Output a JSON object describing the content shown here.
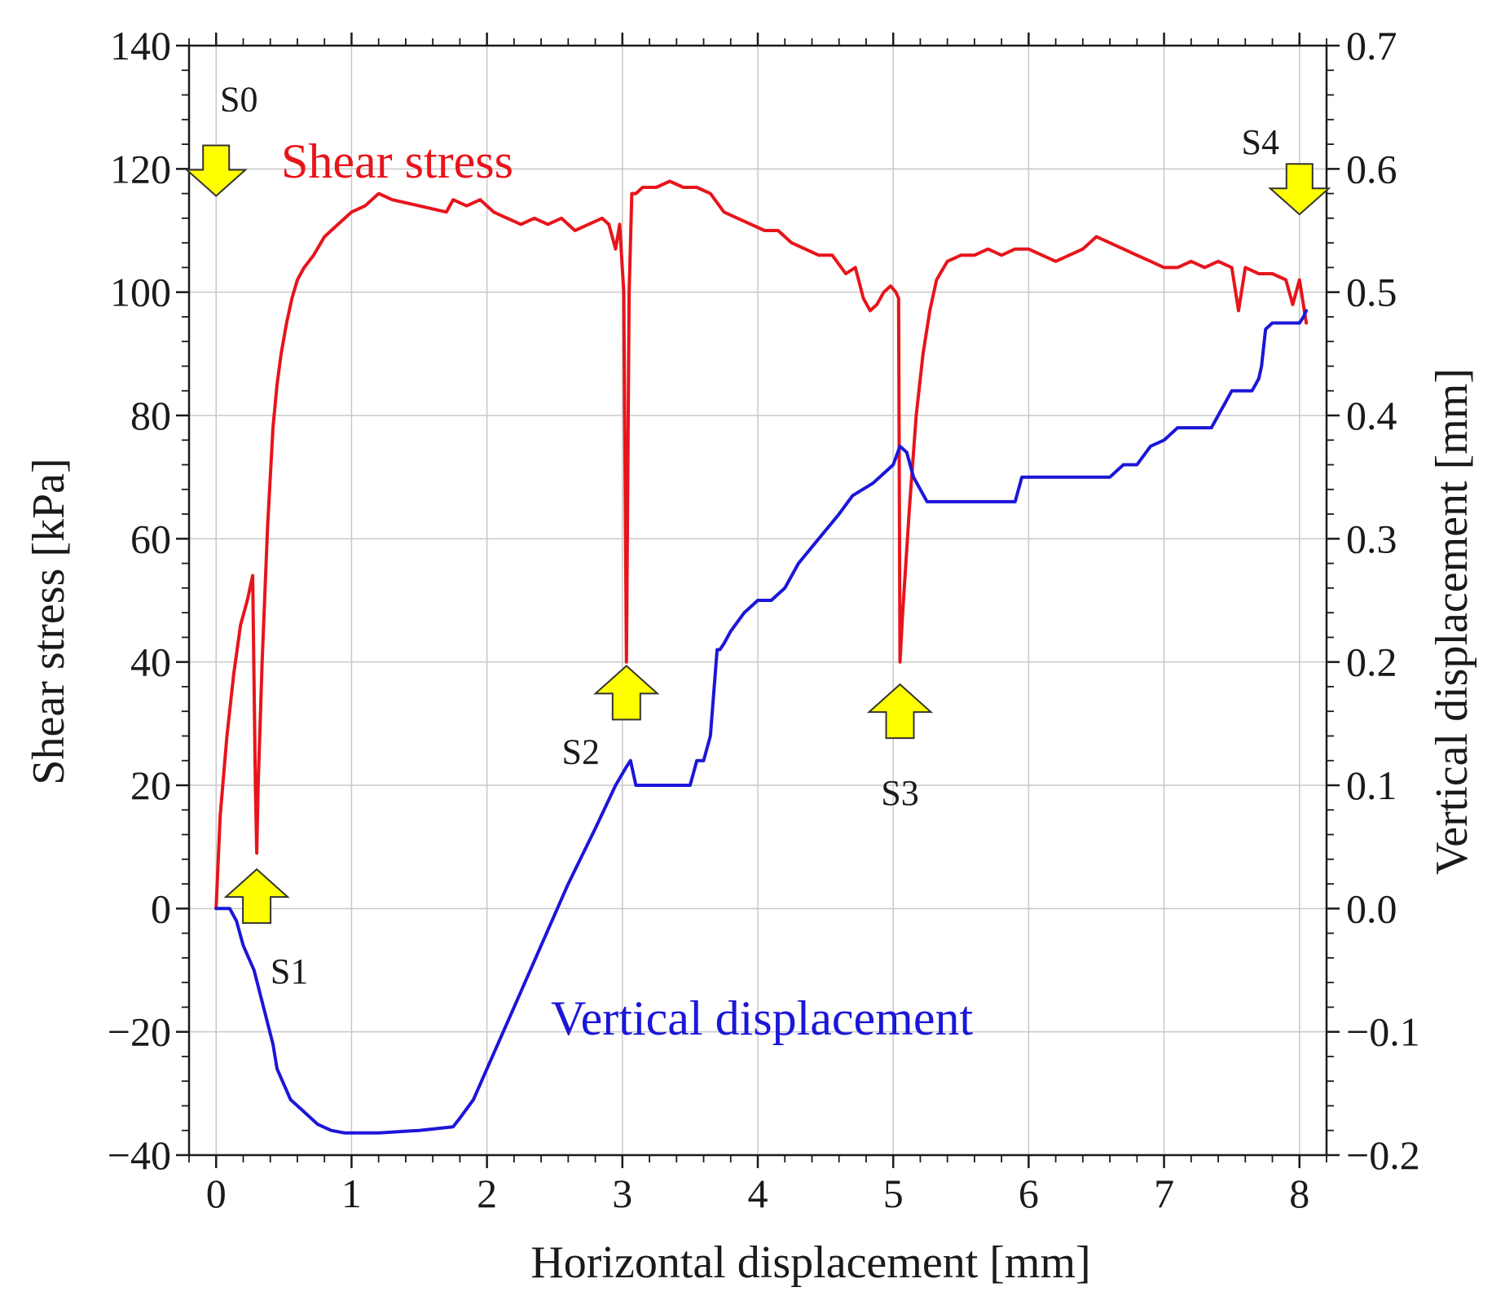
{
  "chart_data": {
    "type": "line",
    "xlabel": "Horizontal displacement [mm]",
    "ylabel": "Shear stress [kPa]",
    "y2label": "Vertical displacement [mm]",
    "xlim": [
      -0.2,
      8.2
    ],
    "ylim": [
      -40,
      140
    ],
    "y2lim": [
      -0.2,
      0.7
    ],
    "xticks": [
      0,
      1,
      2,
      3,
      4,
      5,
      6,
      7,
      8
    ],
    "yticks": [
      -40,
      -20,
      0,
      20,
      40,
      60,
      80,
      100,
      120,
      140
    ],
    "y2ticks": [
      -0.2,
      -0.1,
      0.0,
      0.1,
      0.2,
      0.3,
      0.4,
      0.5,
      0.6,
      0.7
    ],
    "xtick_labels": [
      "0",
      "1",
      "2",
      "3",
      "4",
      "5",
      "6",
      "7",
      "8"
    ],
    "ytick_labels": [
      "−40",
      "−20",
      "0",
      "20",
      "40",
      "60",
      "80",
      "100",
      "120",
      "140"
    ],
    "y2tick_labels": [
      "−0.2",
      "−0.1",
      "0.0",
      "0.1",
      "0.2",
      "0.3",
      "0.4",
      "0.5",
      "0.6",
      "0.7"
    ],
    "grid": true,
    "series": [
      {
        "name": "Shear stress",
        "label": "Shear stress",
        "axis": "left",
        "color": "#e8141b",
        "x": [
          0,
          0.03,
          0.08,
          0.13,
          0.18,
          0.23,
          0.27,
          0.29,
          0.3,
          0.31,
          0.34,
          0.38,
          0.42,
          0.45,
          0.48,
          0.52,
          0.56,
          0.6,
          0.65,
          0.72,
          0.8,
          0.9,
          1.0,
          1.1,
          1.2,
          1.3,
          1.5,
          1.7,
          1.75,
          1.85,
          1.95,
          2.05,
          2.15,
          2.25,
          2.35,
          2.45,
          2.55,
          2.65,
          2.75,
          2.85,
          2.9,
          2.95,
          2.98,
          3.01,
          3.03,
          3.05,
          3.07,
          3.1,
          3.15,
          3.25,
          3.35,
          3.45,
          3.55,
          3.65,
          3.75,
          3.85,
          3.95,
          4.05,
          4.15,
          4.25,
          4.35,
          4.45,
          4.55,
          4.65,
          4.72,
          4.78,
          4.83,
          4.88,
          4.93,
          4.98,
          5.02,
          5.04,
          5.05,
          5.07,
          5.12,
          5.17,
          5.22,
          5.27,
          5.32,
          5.4,
          5.5,
          5.6,
          5.7,
          5.8,
          5.9,
          6.0,
          6.1,
          6.2,
          6.3,
          6.4,
          6.5,
          6.6,
          6.7,
          6.8,
          6.9,
          7.0,
          7.1,
          7.2,
          7.3,
          7.4,
          7.5,
          7.55,
          7.6,
          7.7,
          7.8,
          7.9,
          7.95,
          8.0,
          8.05
        ],
        "y": [
          0,
          15,
          28,
          38,
          46,
          50,
          54,
          20,
          9,
          20,
          40,
          62,
          78,
          85,
          90,
          95,
          99,
          102,
          104,
          106,
          109,
          111,
          113,
          114,
          116,
          115,
          114,
          113,
          115,
          114,
          115,
          113,
          112,
          111,
          112,
          111,
          112,
          110,
          111,
          112,
          111,
          107,
          111,
          100,
          40,
          100,
          116,
          116,
          117,
          117,
          118,
          117,
          117,
          116,
          113,
          112,
          111,
          110,
          110,
          108,
          107,
          106,
          106,
          103,
          104,
          99,
          97,
          98,
          100,
          101,
          100,
          99,
          40,
          48,
          65,
          80,
          90,
          97,
          102,
          105,
          106,
          106,
          107,
          106,
          107,
          107,
          106,
          105,
          106,
          107,
          109,
          108,
          107,
          106,
          105,
          104,
          104,
          105,
          104,
          105,
          104,
          97,
          104,
          103,
          103,
          102,
          98,
          102,
          95
        ]
      },
      {
        "name": "Vertical displacement",
        "label": "Vertical displacement",
        "axis": "right",
        "color": "#1b16d8",
        "x": [
          0,
          0.1,
          0.15,
          0.2,
          0.28,
          0.35,
          0.42,
          0.45,
          0.55,
          0.65,
          0.75,
          0.85,
          0.95,
          1.2,
          1.5,
          1.75,
          1.8,
          1.9,
          2.0,
          2.2,
          2.4,
          2.6,
          2.8,
          2.95,
          3.03,
          3.06,
          3.1,
          3.3,
          3.5,
          3.55,
          3.6,
          3.65,
          3.7,
          3.72,
          3.75,
          3.8,
          3.9,
          4.0,
          4.1,
          4.15,
          4.2,
          4.3,
          4.45,
          4.6,
          4.7,
          4.85,
          4.95,
          5.0,
          5.05,
          5.1,
          5.15,
          5.25,
          5.5,
          5.9,
          5.95,
          6.3,
          6.6,
          6.7,
          6.8,
          6.9,
          7.0,
          7.1,
          7.35,
          7.4,
          7.45,
          7.5,
          7.65,
          7.7,
          7.72,
          7.75,
          7.8,
          7.9,
          8.0,
          8.03,
          8.05
        ],
        "y": [
          0.0,
          0.0,
          -0.01,
          -0.03,
          -0.05,
          -0.08,
          -0.11,
          -0.13,
          -0.155,
          -0.165,
          -0.175,
          -0.18,
          -0.182,
          -0.182,
          -0.18,
          -0.177,
          -0.17,
          -0.155,
          -0.13,
          -0.08,
          -0.03,
          0.02,
          0.065,
          0.1,
          0.115,
          0.12,
          0.1,
          0.1,
          0.1,
          0.12,
          0.12,
          0.14,
          0.21,
          0.21,
          0.215,
          0.225,
          0.24,
          0.25,
          0.25,
          0.255,
          0.26,
          0.28,
          0.3,
          0.32,
          0.335,
          0.345,
          0.355,
          0.36,
          0.375,
          0.37,
          0.35,
          0.33,
          0.33,
          0.33,
          0.35,
          0.35,
          0.35,
          0.36,
          0.36,
          0.375,
          0.38,
          0.39,
          0.39,
          0.4,
          0.41,
          0.42,
          0.42,
          0.43,
          0.44,
          0.47,
          0.475,
          0.475,
          0.475,
          0.48,
          0.485
        ]
      }
    ],
    "annotations": [
      {
        "label": "S0",
        "x": 0.0,
        "y": 118,
        "direction": "down"
      },
      {
        "label": "S1",
        "x": 0.3,
        "y": 4,
        "direction": "up"
      },
      {
        "label": "S2",
        "x": 3.03,
        "y": 37,
        "direction": "up"
      },
      {
        "label": "S3",
        "x": 5.05,
        "y": 34,
        "direction": "up"
      },
      {
        "label": "S4",
        "x": 8.0,
        "y": 115,
        "direction": "down"
      }
    ]
  }
}
